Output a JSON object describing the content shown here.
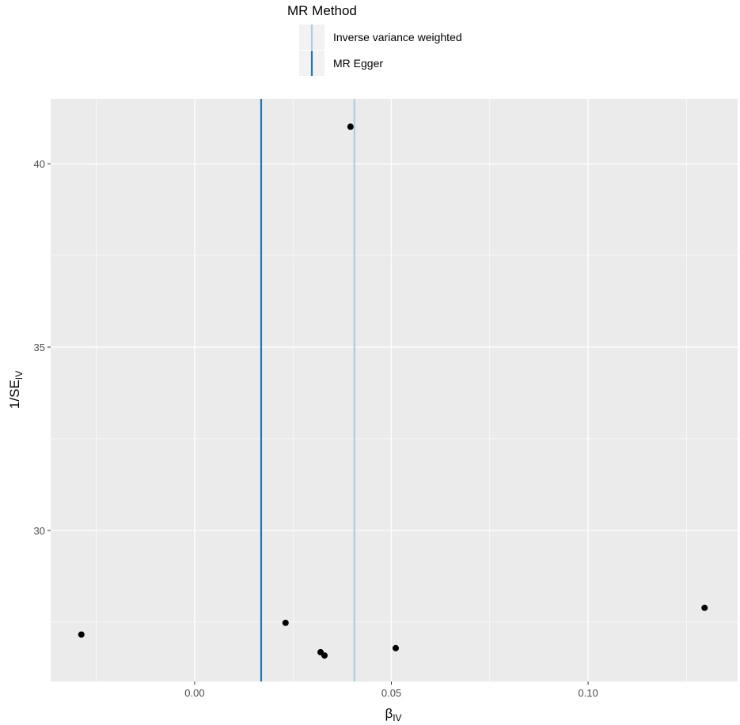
{
  "chart_data": {
    "type": "scatter",
    "x_label": "β",
    "x_label_subscript": "IV",
    "y_label": "1/SE",
    "y_label_subscript": "IV",
    "x": [
      -0.0288,
      0.0231,
      0.032,
      0.033,
      0.0511,
      0.1296,
      0.0396
    ],
    "y": [
      27.16,
      27.48,
      26.68,
      26.59,
      26.79,
      27.89,
      41.01
    ],
    "point_color": "#000000",
    "legend_title": "MR Method",
    "lines": [
      {
        "name": "Inverse variance weighted",
        "color": "#a6cee3",
        "x": 0.0406
      },
      {
        "name": "MR Egger",
        "color": "#1f78b4",
        "x": 0.0169
      }
    ],
    "xlim": [
      -0.0366,
      0.138
    ],
    "ylim": [
      25.88,
      41.77
    ],
    "xticks": [
      {
        "value": 0,
        "label": "0.00"
      },
      0.05,
      {
        "value": 0.1,
        "label": "0.10"
      }
    ],
    "yticks": [
      30,
      35,
      40
    ],
    "xminorticks": [
      -0.025,
      0.025,
      0.075,
      0.125
    ],
    "yminorticks": [
      27.5,
      32.5,
      37.5
    ],
    "grid": true
  }
}
